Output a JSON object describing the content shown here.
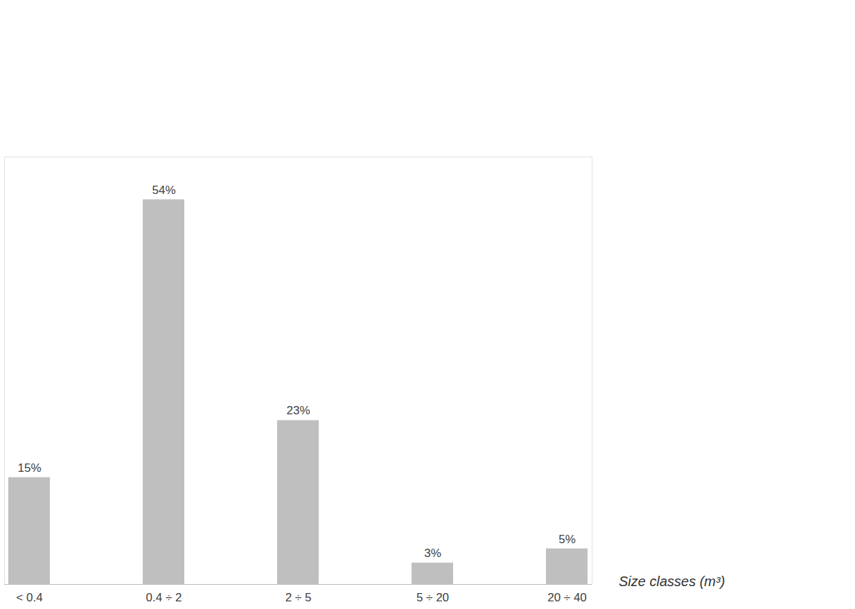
{
  "chart_data": {
    "type": "bar",
    "categories": [
      "< 0.4",
      "0.4 ÷ 2",
      "2 ÷ 5",
      "5 ÷ 20",
      "20 ÷ 40"
    ],
    "values": [
      15,
      54,
      23,
      3,
      5
    ],
    "value_labels": [
      "15%",
      "54%",
      "23%",
      "3%",
      "5%"
    ],
    "data_labels": true,
    "color": "#bfbfbf",
    "xlabel": "Size classes (m³)",
    "ylim": [
      0,
      60
    ],
    "yticks": [],
    "tick_labels": "x",
    "grid": false
  }
}
